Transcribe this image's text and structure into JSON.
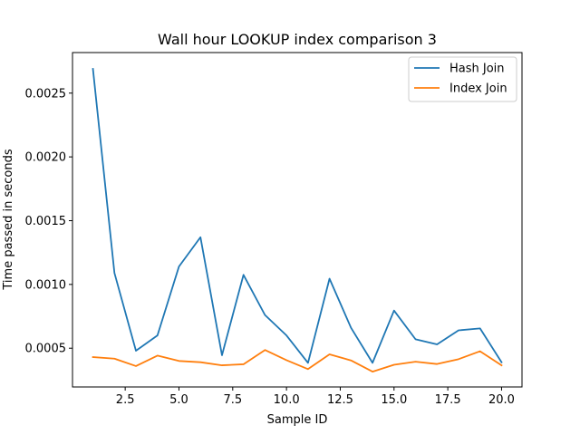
{
  "chart_data": {
    "type": "line",
    "title": "Wall hour LOOKUP index comparison 3",
    "xlabel": "Sample ID",
    "ylabel": "Time passed in seconds",
    "xlim": [
      0.05,
      20.95
    ],
    "ylim": [
      0.000196,
      0.002818
    ],
    "x_ticks": [
      2.5,
      5.0,
      7.5,
      10.0,
      12.5,
      15.0,
      17.5,
      20.0
    ],
    "x_tick_labels": [
      "2.5",
      "5.0",
      "7.5",
      "10.0",
      "12.5",
      "15.0",
      "17.5",
      "20.0"
    ],
    "y_ticks": [
      0.0005,
      0.001,
      0.0015,
      0.002,
      0.0025
    ],
    "y_tick_labels": [
      "0.0005",
      "0.0010",
      "0.0015",
      "0.0020",
      "0.0025"
    ],
    "grid": false,
    "legend_position": "upper right",
    "x": [
      1,
      2,
      3,
      4,
      5,
      6,
      7,
      8,
      9,
      10,
      11,
      12,
      13,
      14,
      15,
      16,
      17,
      18,
      19,
      20
    ],
    "series": [
      {
        "name": "Hash Join",
        "color": "#1f77b4",
        "values": [
          0.00269,
          0.00109,
          0.00048,
          0.0006,
          0.00114,
          0.00137,
          0.000445,
          0.001075,
          0.00076,
          0.0006,
          0.000385,
          0.001045,
          0.00066,
          0.000385,
          0.000795,
          0.00057,
          0.00053,
          0.00064,
          0.000655,
          0.00039
        ]
      },
      {
        "name": "Index Join",
        "color": "#ff7f0e",
        "values": [
          0.00043,
          0.000418,
          0.00036,
          0.000442,
          0.0004,
          0.00039,
          0.000366,
          0.000374,
          0.000486,
          0.000406,
          0.000336,
          0.000452,
          0.000404,
          0.000316,
          0.00037,
          0.000394,
          0.000376,
          0.000414,
          0.000476,
          0.000366
        ]
      }
    ]
  }
}
